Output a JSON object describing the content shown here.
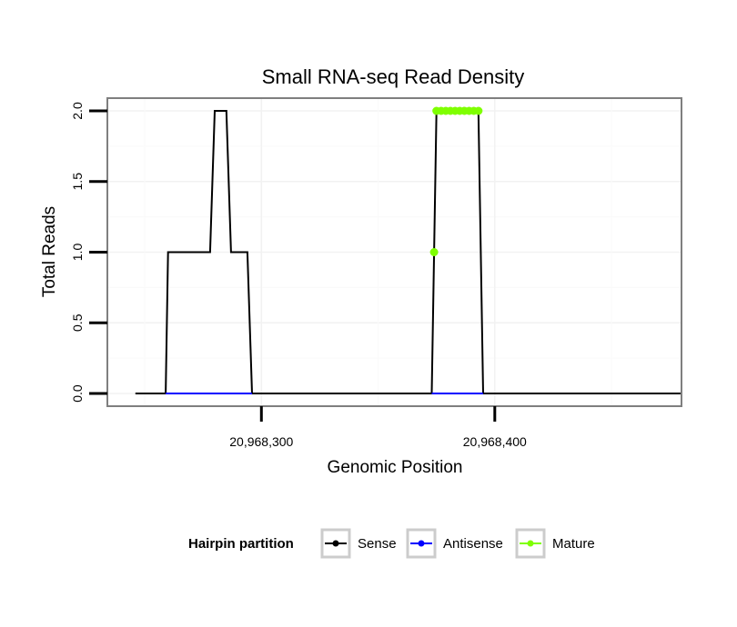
{
  "chart_data": {
    "type": "line",
    "title": "Small RNA-seq Read Density",
    "xlabel": "Genomic Position",
    "ylabel": "Total Reads",
    "xlim": [
      20968234,
      20968480
    ],
    "ylim": [
      -0.09,
      2.09
    ],
    "x_ticks": [
      {
        "value": 20968300,
        "label": "20,968,300"
      },
      {
        "value": 20968400,
        "label": "20,968,400"
      }
    ],
    "y_ticks": [
      {
        "value": 0.0,
        "label": "0.0"
      },
      {
        "value": 0.5,
        "label": "0.5"
      },
      {
        "value": 1.0,
        "label": "1.0"
      },
      {
        "value": 1.5,
        "label": "1.5"
      },
      {
        "value": 2.0,
        "label": "2.0"
      }
    ],
    "grid": true,
    "series": [
      {
        "name": "Sense",
        "color": "#000000",
        "x": [
          20968246,
          20968259,
          20968260,
          20968278,
          20968280,
          20968285,
          20968287,
          20968294,
          20968296,
          20968373,
          20968375,
          20968393,
          20968395,
          20968480
        ],
        "y": [
          0,
          0,
          1,
          1,
          2,
          2,
          1,
          1,
          0,
          0,
          2,
          2,
          0,
          0
        ]
      },
      {
        "name": "Antisense",
        "color": "#0000ff",
        "x": [
          20968259,
          20968296,
          20968373,
          20968395
        ],
        "y": [
          0,
          0,
          0,
          0
        ],
        "segments": [
          [
            0,
            1
          ],
          [
            2,
            3
          ]
        ]
      },
      {
        "name": "Mature",
        "color": "#7fff00",
        "points_x": [
          20968374,
          20968375,
          20968377,
          20968379,
          20968381,
          20968383,
          20968385,
          20968387,
          20968389,
          20968391,
          20968393
        ],
        "points_y": [
          1,
          2,
          2,
          2,
          2,
          2,
          2,
          2,
          2,
          2,
          2
        ]
      }
    ]
  },
  "legend": {
    "title": "Hairpin partition",
    "position": "bottom",
    "items": [
      {
        "label": "Sense",
        "color": "#000000"
      },
      {
        "label": "Antisense",
        "color": "#0000ff"
      },
      {
        "label": "Mature",
        "color": "#7fff00"
      }
    ]
  }
}
